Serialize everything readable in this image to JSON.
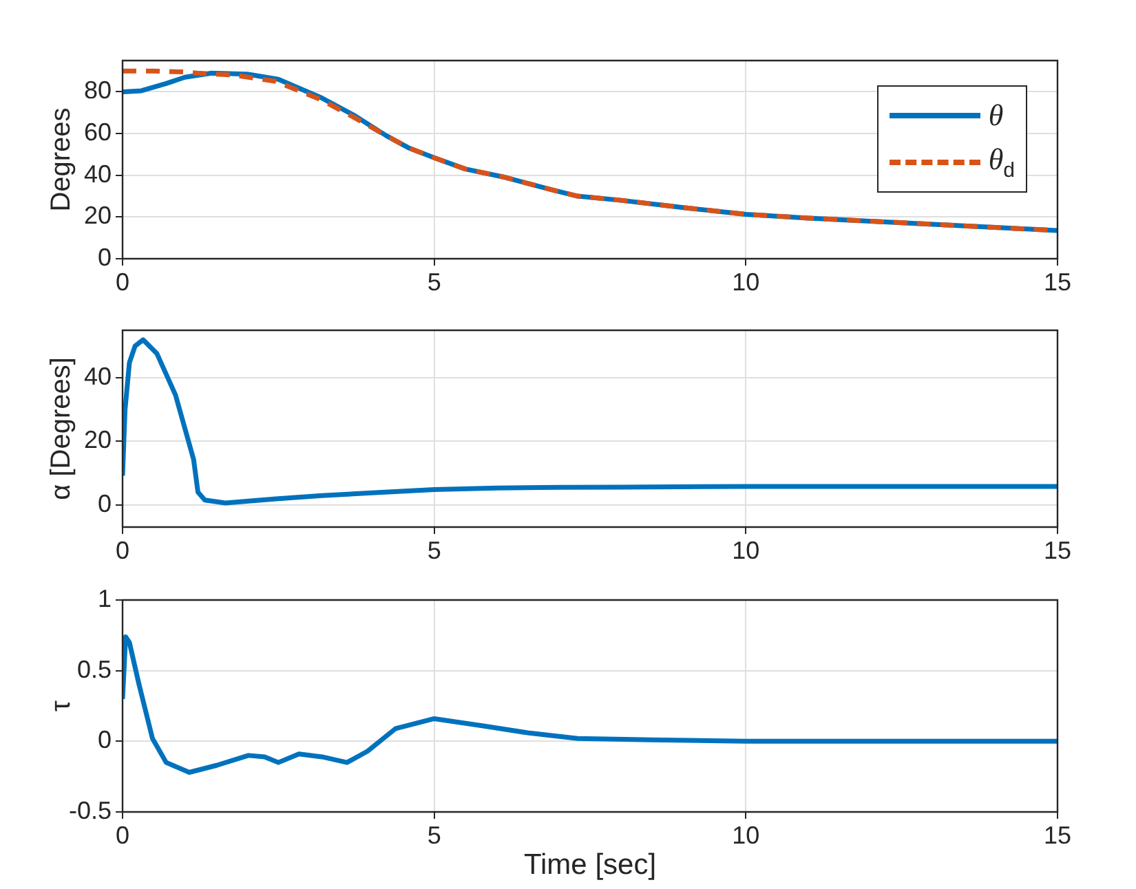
{
  "chart_data": [
    {
      "type": "line",
      "ylabel": "Degrees",
      "xlim": [
        0,
        15
      ],
      "xticks": [
        0,
        5,
        10,
        15
      ],
      "ylim": [
        0,
        95
      ],
      "yticks": [
        0,
        20,
        40,
        60,
        80
      ],
      "grid": true,
      "legend": "top right",
      "series": [
        {
          "name": "θ",
          "color": "#0072bd",
          "line_style": "solid",
          "x": [
            0,
            0.3,
            0.7,
            1.0,
            1.43,
            2.0,
            2.5,
            3.2,
            3.7,
            4.23,
            4.6,
            5,
            5.5,
            6.14,
            6.89,
            7.3,
            8,
            9,
            10,
            11,
            12,
            13,
            14,
            15
          ],
          "values": [
            80,
            80.5,
            84,
            87,
            89,
            88.5,
            86,
            77,
            69,
            59,
            53,
            48.4,
            43,
            39,
            33,
            30,
            28,
            24.5,
            21.3,
            19.5,
            18,
            16.5,
            15,
            13.5
          ]
        },
        {
          "name": "θ$_{d}$",
          "color": "#d95319",
          "line_style": "dashed",
          "x": [
            0,
            0.5,
            1.0,
            1.2,
            1.8,
            2.46,
            3.2,
            3.7,
            4.23,
            4.6,
            5,
            5.5,
            6.14,
            6.89,
            7.3,
            8,
            9,
            10,
            11,
            12,
            13,
            14,
            15
          ],
          "values": [
            90,
            90,
            89.5,
            89,
            88,
            85,
            76,
            68,
            59,
            53,
            48.4,
            43,
            39,
            33,
            30,
            28,
            24.5,
            21.3,
            19.5,
            18,
            16.5,
            15,
            13.5
          ]
        }
      ]
    },
    {
      "type": "line",
      "ylabel": "α [Degrees]",
      "xlim": [
        0,
        15
      ],
      "xticks": [
        0,
        5,
        10,
        15
      ],
      "ylim": [
        -7,
        55
      ],
      "yticks": [
        0,
        20,
        40
      ],
      "grid": true,
      "series": [
        {
          "color": "#0072bd",
          "line_style": "solid",
          "x": [
            0,
            0.04,
            0.11,
            0.2,
            0.33,
            0.55,
            0.85,
            1.14,
            1.21,
            1.32,
            1.65,
            2.46,
            3.2,
            4,
            5,
            6,
            7,
            8,
            10,
            12,
            15
          ],
          "values": [
            9.2,
            30,
            44.8,
            50,
            52,
            47.7,
            34.6,
            14.3,
            4,
            1.5,
            0.6,
            1.9,
            2.9,
            3.8,
            4.8,
            5.3,
            5.5,
            5.6,
            5.8,
            5.8,
            5.8
          ]
        }
      ]
    },
    {
      "type": "line",
      "ylabel": "τ",
      "xlabel": "Time [sec]",
      "xlim": [
        0,
        15
      ],
      "xticks": [
        0,
        5,
        10,
        15
      ],
      "ylim": [
        -0.5,
        1
      ],
      "yticks": [
        -0.5,
        0,
        0.5,
        1
      ],
      "grid": true,
      "series": [
        {
          "color": "#0072bd",
          "line_style": "solid",
          "x": [
            0,
            0.05,
            0.11,
            0.26,
            0.48,
            0.7,
            1.07,
            1.51,
            2.02,
            2.28,
            2.5,
            2.83,
            3.2,
            3.6,
            3.93,
            4.38,
            5,
            5.77,
            6.5,
            7.3,
            8.5,
            10,
            12,
            15
          ],
          "values": [
            0.3,
            0.74,
            0.7,
            0.41,
            0.02,
            -0.15,
            -0.22,
            -0.17,
            -0.1,
            -0.11,
            -0.15,
            -0.09,
            -0.11,
            -0.15,
            -0.07,
            0.09,
            0.16,
            0.11,
            0.06,
            0.02,
            0.01,
            0,
            0,
            0
          ]
        }
      ]
    }
  ]
}
